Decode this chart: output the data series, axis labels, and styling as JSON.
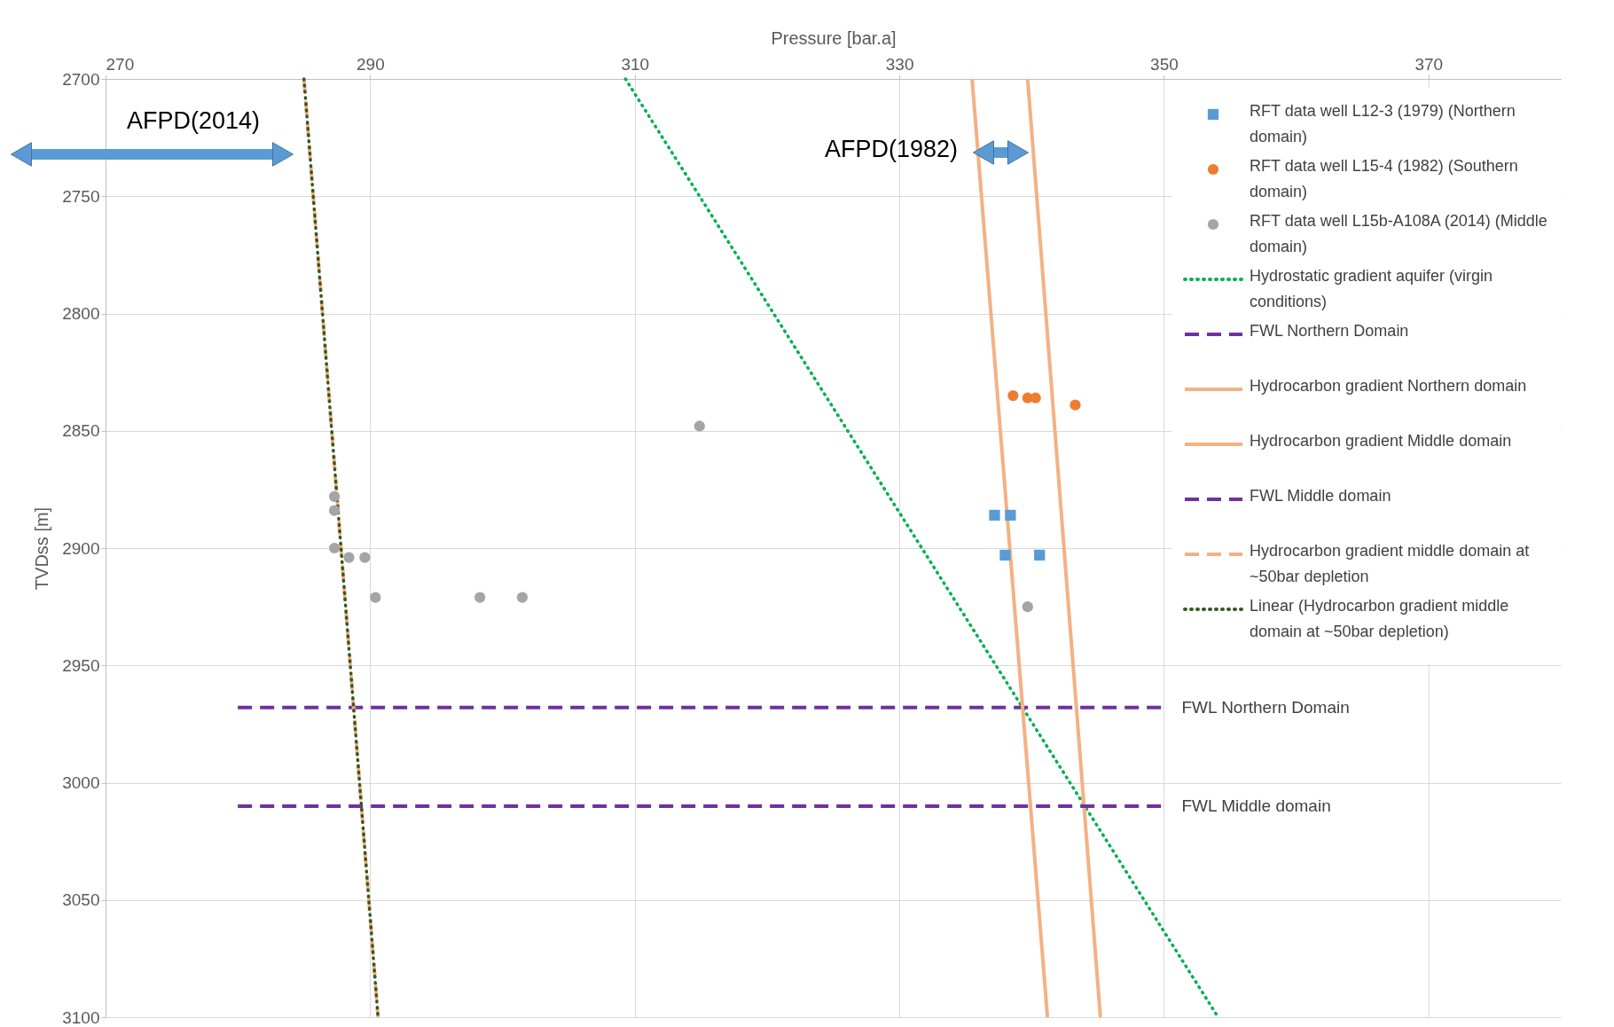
{
  "chart_data": {
    "type": "scatter",
    "xlabel": "Pressure [bar.a]",
    "ylabel": "TVDss [m]",
    "xlim": [
      270,
      380
    ],
    "xticks": [
      270,
      290,
      310,
      330,
      350,
      370
    ],
    "ylim": [
      3100,
      2700
    ],
    "yticks": [
      2700,
      2750,
      2800,
      2850,
      2900,
      2950,
      3000,
      3050,
      3100
    ],
    "grid": true,
    "legend": "right",
    "series": [
      {
        "name": "RFT data well L12-3 (1979) (Northern domain)",
        "type": "scatter",
        "marker": "square",
        "color": "#5b9bd5",
        "x": [
          337.2,
          338.4,
          338.0,
          340.6
        ],
        "values": [
          2886,
          2886,
          2903,
          2903
        ]
      },
      {
        "name": "RFT data well L15-4 (1982) (Southern domain)",
        "type": "scatter",
        "marker": "circle",
        "color": "#ed7d31",
        "x": [
          338.6,
          339.7,
          340.3,
          343.3
        ],
        "values": [
          2835,
          2836,
          2836,
          2839
        ]
      },
      {
        "name": "RFT data well L15b-A108A (2014) (Middle domain)",
        "type": "scatter",
        "marker": "circle",
        "color": "#a5a5a5",
        "x": [
          287.3,
          287.3,
          287.3,
          288.4,
          289.6,
          290.4,
          298.3,
          301.5,
          314.9,
          339.7
        ],
        "values": [
          2878,
          2884,
          2900,
          2904,
          2904,
          2921,
          2921,
          2921,
          2848,
          2925
        ]
      },
      {
        "name": "Hydrostatic gradient aquifer (virgin conditions)",
        "type": "line",
        "line_style": "dotted",
        "color": "#00b050",
        "x": [
          309.3,
          354.1
        ],
        "values": [
          2700,
          3100
        ]
      },
      {
        "name": "FWL Northern Domain",
        "type": "line",
        "line_style": "dashed",
        "color": "#7030a0",
        "x": [
          280,
          350
        ],
        "values": [
          2968,
          2968
        ]
      },
      {
        "name": "Hydrocarbon gradient Northern domain",
        "type": "line",
        "line_style": "solid",
        "color": "#f4b183",
        "x": [
          335.5,
          341.2
        ],
        "values": [
          2700,
          3100
        ]
      },
      {
        "name": "Hydrocarbon gradient Middle domain",
        "type": "line",
        "line_style": "solid",
        "color": "#f4b183",
        "x": [
          339.7,
          345.2
        ],
        "values": [
          2700,
          3100
        ]
      },
      {
        "name": "FWL Middle domain",
        "type": "line",
        "line_style": "dashed",
        "color": "#7030a0",
        "x": [
          280,
          350
        ],
        "values": [
          3010,
          3010
        ]
      },
      {
        "name": "Hydrocarbon gradient middle domain at ~50bar depletion",
        "type": "line",
        "line_style": "dashed",
        "color": "#f4b183",
        "x": [
          285.0,
          290.6
        ],
        "values": [
          2700,
          3100
        ]
      },
      {
        "name": "Linear (Hydrocarbon gradient middle domain at ~50bar depletion)",
        "type": "line",
        "line_style": "dotted",
        "color": "#385723",
        "x": [
          285.0,
          290.6
        ],
        "values": [
          2700,
          3100
        ]
      }
    ],
    "annotations": [
      "AFPD(2014)",
      "AFPD(1982)"
    ]
  }
}
